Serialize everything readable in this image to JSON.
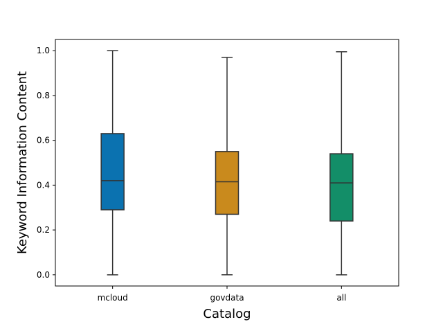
{
  "chart_data": {
    "type": "box",
    "title": "",
    "xlabel": "Catalog",
    "ylabel": "Keyword Information Content",
    "ylim": [
      -0.05,
      1.05
    ],
    "yticks": [
      0.0,
      0.2,
      0.4,
      0.6,
      0.8,
      1.0
    ],
    "ytick_labels": [
      "0.0",
      "0.2",
      "0.4",
      "0.6",
      "0.8",
      "1.0"
    ],
    "grid": false,
    "categories": [
      "mcloud",
      "govdata",
      "all"
    ],
    "boxes": [
      {
        "category": "mcloud",
        "min": 0.0,
        "q1": 0.29,
        "median": 0.42,
        "q3": 0.63,
        "max": 1.0,
        "color": "#0b72b0"
      },
      {
        "category": "govdata",
        "min": 0.0,
        "q1": 0.27,
        "median": 0.415,
        "q3": 0.55,
        "max": 0.97,
        "color": "#c98a1d"
      },
      {
        "category": "all",
        "min": 0.0,
        "q1": 0.24,
        "median": 0.41,
        "q3": 0.54,
        "max": 0.995,
        "color": "#138e68"
      }
    ],
    "line_color": "#333333"
  }
}
